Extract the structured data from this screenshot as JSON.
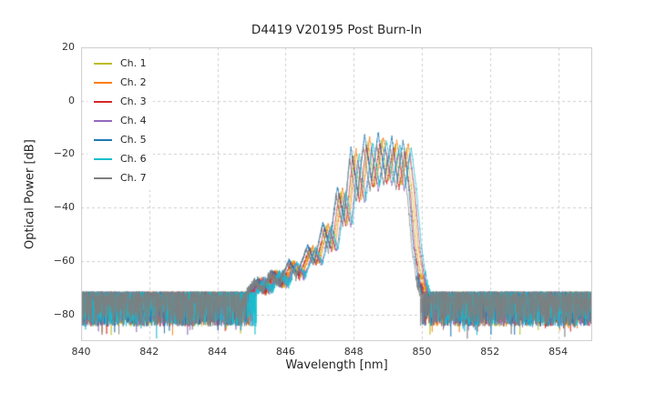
{
  "figure": {
    "background": "#ffffff",
    "axes_border_color": "#cccccc",
    "text_color": "#262626"
  },
  "chart_data": {
    "type": "line",
    "title": "D4419 V20195 Post Burn-In",
    "xlabel": "Wavelength [nm]",
    "ylabel": "Optical Power [dB]",
    "xlim": [
      840,
      855
    ],
    "ylim": [
      -90,
      20
    ],
    "xticks": [
      840,
      842,
      844,
      846,
      848,
      850,
      852,
      854
    ],
    "yticks": [
      20,
      0,
      -20,
      -40,
      -60,
      -80
    ],
    "grid": true,
    "grid_color": "#cccccc",
    "grid_style": "dashed",
    "legend_position": "upper-left",
    "noise_floor_db": -74,
    "noise_min_db": -88,
    "series": [
      {
        "name": "Ch. 1",
        "color": "#bcbd22",
        "offset_nm": 0.0,
        "gain": 1.0,
        "seed": 101
      },
      {
        "name": "Ch. 2",
        "color": "#ff7f0e",
        "offset_nm": 0.05,
        "gain": 1.03,
        "seed": 202
      },
      {
        "name": "Ch. 3",
        "color": "#d62728",
        "offset_nm": -0.05,
        "gain": 0.98,
        "seed": 303
      },
      {
        "name": "Ch. 4",
        "color": "#9467bd",
        "offset_nm": 0.1,
        "gain": 0.96,
        "seed": 404
      },
      {
        "name": "Ch. 5",
        "color": "#1f77b4",
        "offset_nm": -0.1,
        "gain": 1.05,
        "seed": 505
      },
      {
        "name": "Ch. 6",
        "color": "#17becf",
        "offset_nm": 0.14,
        "gain": 1.0,
        "seed": 606
      },
      {
        "name": "Ch. 7",
        "color": "#7f7f7f",
        "offset_nm": -0.14,
        "gain": 0.97,
        "seed": 707
      }
    ],
    "envelope_keypoints": [
      [
        840.0,
        -74
      ],
      [
        844.6,
        -74
      ],
      [
        845.0,
        -72
      ],
      [
        845.25,
        -67.5
      ],
      [
        845.45,
        -71
      ],
      [
        845.7,
        -64.5
      ],
      [
        845.95,
        -68.5
      ],
      [
        846.2,
        -60.5
      ],
      [
        846.45,
        -65.5
      ],
      [
        846.75,
        -55
      ],
      [
        846.95,
        -61
      ],
      [
        847.2,
        -47
      ],
      [
        847.4,
        -56
      ],
      [
        847.62,
        -34
      ],
      [
        847.82,
        -46
      ],
      [
        848.02,
        -20
      ],
      [
        848.22,
        -37
      ],
      [
        848.42,
        -15.5
      ],
      [
        848.62,
        -32
      ],
      [
        848.82,
        -15
      ],
      [
        849.02,
        -30
      ],
      [
        849.22,
        -16.5
      ],
      [
        849.38,
        -32
      ],
      [
        849.55,
        -17.5
      ],
      [
        849.72,
        -35
      ],
      [
        849.85,
        -55
      ],
      [
        850.0,
        -68
      ],
      [
        850.15,
        -74
      ],
      [
        855.0,
        -74
      ]
    ]
  }
}
